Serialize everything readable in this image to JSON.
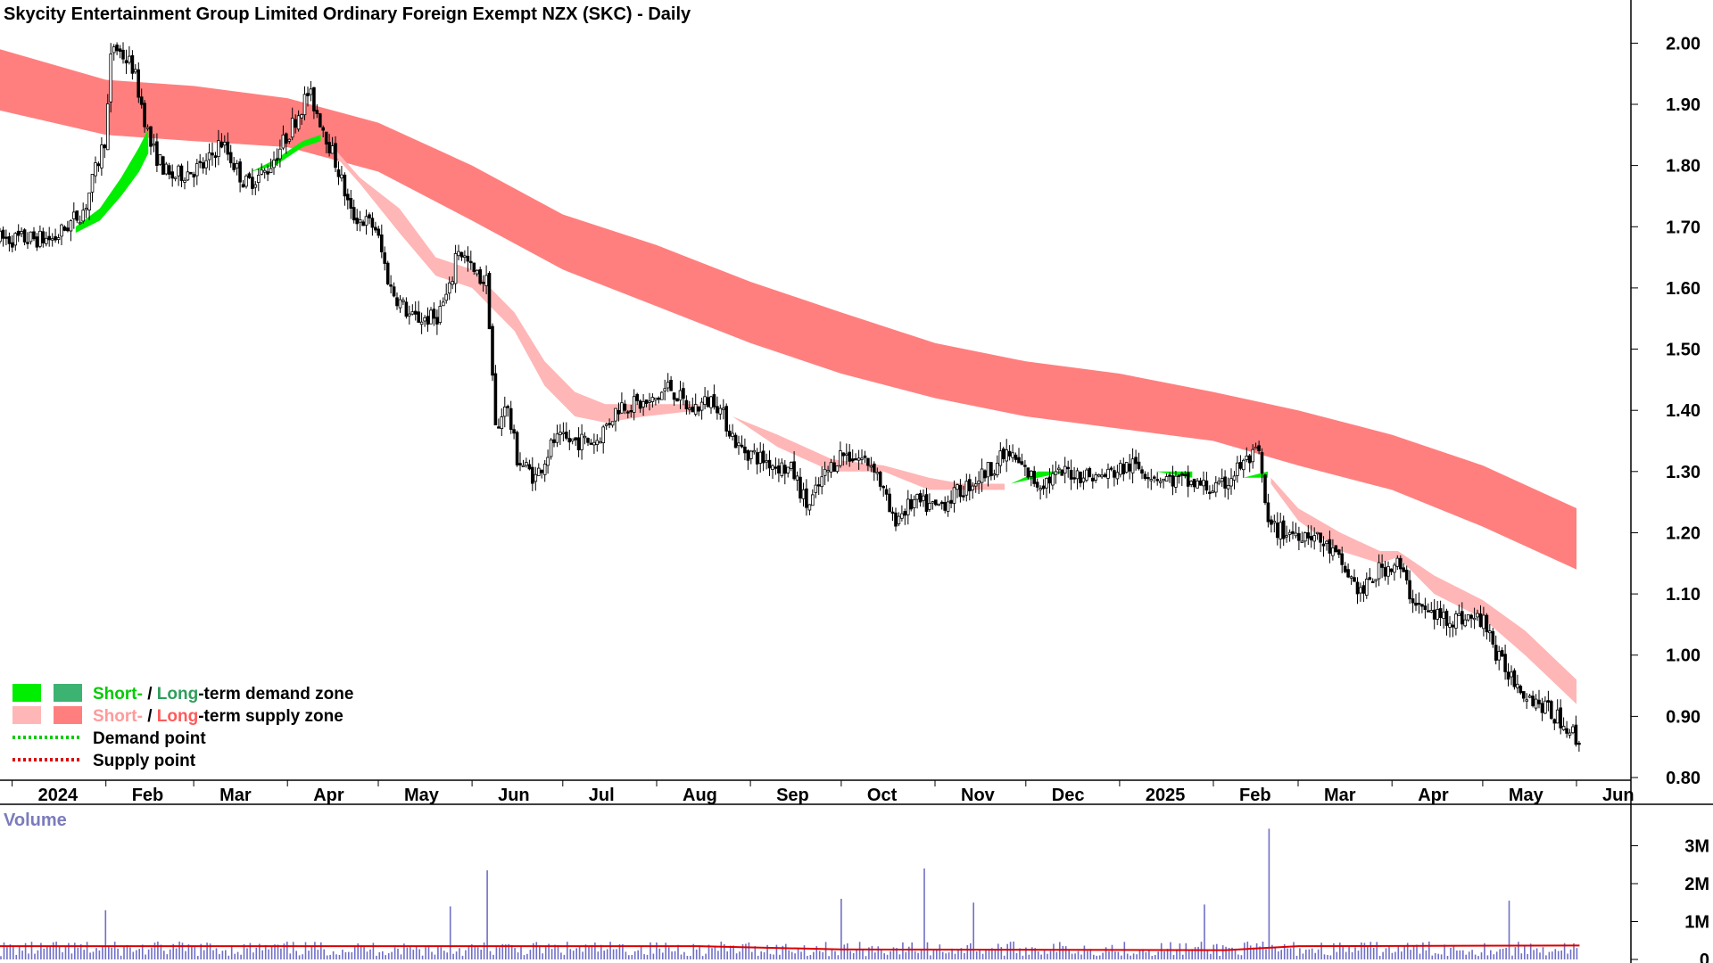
{
  "title": "Skycity Entertainment Group Limited Ordinary Foreign Exempt NZX (SKC) - Daily",
  "colors": {
    "background": "#ffffff",
    "short_demand": "#00ee00",
    "long_demand": "#3cb371",
    "short_supply": "#ffb6b6",
    "long_supply": "#ff7f7f",
    "demand_point": "#00cc00",
    "supply_point": "#dd0000",
    "overlap_orange": "#ff6a1a",
    "candle": "#000000",
    "volume_bar": "#6f6fc8",
    "volume_avg": "#dd0000",
    "volume_title": "#7b7bbd"
  },
  "legend": {
    "row1_short": "Short-",
    "row1_sep": " / ",
    "row1_long": "Long",
    "row1_rest": "-term demand zone",
    "row2_short": "Short-",
    "row2_sep": " / ",
    "row2_long": "Long",
    "row2_rest": "-term supply zone",
    "row3": "Demand point",
    "row4": "Supply point"
  },
  "volume_panel": {
    "title": "Volume",
    "y_ticks": [
      "3M",
      "2M",
      "1M",
      "0"
    ]
  },
  "chart_data": {
    "type": "candlestick",
    "title": "Skycity Entertainment Group Limited Ordinary Foreign Exempt NZX (SKC) - Daily",
    "y_ticks": [
      "2.00",
      "1.90",
      "1.80",
      "1.70",
      "1.60",
      "1.50",
      "1.40",
      "1.30",
      "1.20",
      "1.10",
      "1.00",
      "0.90",
      "0.80"
    ],
    "ylim": [
      0.78,
      2.06
    ],
    "x_ticks": [
      "2024",
      "Feb",
      "Mar",
      "Apr",
      "May",
      "Jun",
      "Jul",
      "Aug",
      "Sep",
      "Oct",
      "Nov",
      "Dec",
      "2025",
      "Feb",
      "Mar",
      "Apr",
      "May",
      "Jun"
    ],
    "x_dates": [
      "2024-01-01",
      "2024-02-01",
      "2024-03-01",
      "2024-04-01",
      "2024-05-01",
      "2024-06-01",
      "2024-07-01",
      "2024-08-01",
      "2024-09-01",
      "2024-10-01",
      "2024-11-01",
      "2024-12-01",
      "2025-01-01",
      "2025-02-01",
      "2025-03-01",
      "2025-04-01",
      "2025-05-01",
      "2025-06-01"
    ],
    "price_series": [
      {
        "date": "2023-12-28",
        "value": 1.68
      },
      {
        "date": "2024-01-15",
        "value": 1.68
      },
      {
        "date": "2024-01-25",
        "value": 1.73
      },
      {
        "date": "2024-02-01",
        "value": 1.85
      },
      {
        "date": "2024-02-03",
        "value": 2.0
      },
      {
        "date": "2024-02-10",
        "value": 1.96
      },
      {
        "date": "2024-02-16",
        "value": 1.83
      },
      {
        "date": "2024-02-22",
        "value": 1.78
      },
      {
        "date": "2024-03-05",
        "value": 1.8
      },
      {
        "date": "2024-03-10",
        "value": 1.84
      },
      {
        "date": "2024-03-18",
        "value": 1.77
      },
      {
        "date": "2024-03-25",
        "value": 1.79
      },
      {
        "date": "2024-04-01",
        "value": 1.85
      },
      {
        "date": "2024-04-08",
        "value": 1.92
      },
      {
        "date": "2024-04-13",
        "value": 1.86
      },
      {
        "date": "2024-04-18",
        "value": 1.79
      },
      {
        "date": "2024-04-22",
        "value": 1.72
      },
      {
        "date": "2024-04-30",
        "value": 1.7
      },
      {
        "date": "2024-05-05",
        "value": 1.6
      },
      {
        "date": "2024-05-12",
        "value": 1.55
      },
      {
        "date": "2024-05-20",
        "value": 1.55
      },
      {
        "date": "2024-05-25",
        "value": 1.6
      },
      {
        "date": "2024-05-27",
        "value": 1.67
      },
      {
        "date": "2024-06-02",
        "value": 1.62
      },
      {
        "date": "2024-06-06",
        "value": 1.61
      },
      {
        "date": "2024-06-09",
        "value": 1.35
      },
      {
        "date": "2024-06-12",
        "value": 1.42
      },
      {
        "date": "2024-06-16",
        "value": 1.32
      },
      {
        "date": "2024-06-22",
        "value": 1.29
      },
      {
        "date": "2024-06-28",
        "value": 1.35
      },
      {
        "date": "2024-07-05",
        "value": 1.35
      },
      {
        "date": "2024-07-12",
        "value": 1.35
      },
      {
        "date": "2024-07-20",
        "value": 1.41
      },
      {
        "date": "2024-07-30",
        "value": 1.41
      },
      {
        "date": "2024-08-05",
        "value": 1.44
      },
      {
        "date": "2024-08-12",
        "value": 1.4
      },
      {
        "date": "2024-08-20",
        "value": 1.42
      },
      {
        "date": "2024-08-28",
        "value": 1.34
      },
      {
        "date": "2024-09-05",
        "value": 1.32
      },
      {
        "date": "2024-09-15",
        "value": 1.3
      },
      {
        "date": "2024-09-20",
        "value": 1.24
      },
      {
        "date": "2024-09-25",
        "value": 1.29
      },
      {
        "date": "2024-10-01",
        "value": 1.33
      },
      {
        "date": "2024-10-08",
        "value": 1.32
      },
      {
        "date": "2024-10-12",
        "value": 1.31
      },
      {
        "date": "2024-10-18",
        "value": 1.22
      },
      {
        "date": "2024-10-25",
        "value": 1.25
      },
      {
        "date": "2024-11-01",
        "value": 1.24
      },
      {
        "date": "2024-11-10",
        "value": 1.27
      },
      {
        "date": "2024-11-18",
        "value": 1.3
      },
      {
        "date": "2024-11-25",
        "value": 1.33
      },
      {
        "date": "2024-12-05",
        "value": 1.28
      },
      {
        "date": "2024-12-15",
        "value": 1.3
      },
      {
        "date": "2024-12-25",
        "value": 1.29
      },
      {
        "date": "2025-01-05",
        "value": 1.31
      },
      {
        "date": "2025-01-15",
        "value": 1.29
      },
      {
        "date": "2025-01-25",
        "value": 1.28
      },
      {
        "date": "2025-02-03",
        "value": 1.27
      },
      {
        "date": "2025-02-10",
        "value": 1.31
      },
      {
        "date": "2025-02-16",
        "value": 1.33
      },
      {
        "date": "2025-02-19",
        "value": 1.21
      },
      {
        "date": "2025-02-25",
        "value": 1.2
      },
      {
        "date": "2025-03-05",
        "value": 1.2
      },
      {
        "date": "2025-03-12",
        "value": 1.17
      },
      {
        "date": "2025-03-22",
        "value": 1.1
      },
      {
        "date": "2025-03-28",
        "value": 1.14
      },
      {
        "date": "2025-04-03",
        "value": 1.15
      },
      {
        "date": "2025-04-07",
        "value": 1.1
      },
      {
        "date": "2025-04-12",
        "value": 1.07
      },
      {
        "date": "2025-04-20",
        "value": 1.06
      },
      {
        "date": "2025-04-28",
        "value": 1.06
      },
      {
        "date": "2025-05-03",
        "value": 1.05
      },
      {
        "date": "2025-05-05",
        "value": 1.0
      },
      {
        "date": "2025-05-10",
        "value": 0.97
      },
      {
        "date": "2025-05-15",
        "value": 0.94
      },
      {
        "date": "2025-05-20",
        "value": 0.92
      },
      {
        "date": "2025-05-25",
        "value": 0.9
      },
      {
        "date": "2025-05-30",
        "value": 0.88
      },
      {
        "date": "2025-06-02",
        "value": 0.85
      }
    ],
    "long_term_supply_zone": [
      {
        "date": "2023-12-28",
        "top": 1.99,
        "bottom": 1.89
      },
      {
        "date": "2024-02-01",
        "top": 1.94,
        "bottom": 1.85
      },
      {
        "date": "2024-03-01",
        "top": 1.93,
        "bottom": 1.84
      },
      {
        "date": "2024-04-01",
        "top": 1.91,
        "bottom": 1.83
      },
      {
        "date": "2024-05-01",
        "top": 1.87,
        "bottom": 1.79
      },
      {
        "date": "2024-06-01",
        "top": 1.8,
        "bottom": 1.71
      },
      {
        "date": "2024-07-01",
        "top": 1.72,
        "bottom": 1.63
      },
      {
        "date": "2024-08-01",
        "top": 1.67,
        "bottom": 1.57
      },
      {
        "date": "2024-09-01",
        "top": 1.61,
        "bottom": 1.51
      },
      {
        "date": "2024-10-01",
        "top": 1.56,
        "bottom": 1.46
      },
      {
        "date": "2024-11-01",
        "top": 1.51,
        "bottom": 1.42
      },
      {
        "date": "2024-12-01",
        "top": 1.48,
        "bottom": 1.39
      },
      {
        "date": "2025-01-01",
        "top": 1.46,
        "bottom": 1.37
      },
      {
        "date": "2025-02-01",
        "top": 1.43,
        "bottom": 1.35
      },
      {
        "date": "2025-03-01",
        "top": 1.4,
        "bottom": 1.31
      },
      {
        "date": "2025-04-01",
        "top": 1.36,
        "bottom": 1.27
      },
      {
        "date": "2025-05-01",
        "top": 1.31,
        "bottom": 1.21
      },
      {
        "date": "2025-06-01",
        "top": 1.24,
        "bottom": 1.14
      }
    ],
    "short_term_zones": [
      {
        "kind": "demand",
        "points": [
          {
            "date": "2024-01-22",
            "top": 1.7,
            "bottom": 1.69
          },
          {
            "date": "2024-01-30",
            "top": 1.73,
            "bottom": 1.71
          },
          {
            "date": "2024-02-06",
            "top": 1.78,
            "bottom": 1.75
          },
          {
            "date": "2024-02-12",
            "top": 1.83,
            "bottom": 1.79
          },
          {
            "date": "2024-02-15",
            "top": 1.86,
            "bottom": 1.82
          }
        ]
      },
      {
        "kind": "demand",
        "points": [
          {
            "date": "2024-03-20",
            "top": 1.79,
            "bottom": 1.79
          },
          {
            "date": "2024-03-28",
            "top": 1.81,
            "bottom": 1.8
          },
          {
            "date": "2024-04-06",
            "top": 1.84,
            "bottom": 1.83
          },
          {
            "date": "2024-04-12",
            "top": 1.85,
            "bottom": 1.84
          }
        ]
      },
      {
        "kind": "supply",
        "points": [
          {
            "date": "2024-04-16",
            "top": 1.83,
            "bottom": 1.82
          },
          {
            "date": "2024-04-25",
            "top": 1.78,
            "bottom": 1.77
          },
          {
            "date": "2024-05-08",
            "top": 1.73,
            "bottom": 1.69
          },
          {
            "date": "2024-05-20",
            "top": 1.65,
            "bottom": 1.62
          },
          {
            "date": "2024-06-01",
            "top": 1.63,
            "bottom": 1.6
          },
          {
            "date": "2024-06-15",
            "top": 1.56,
            "bottom": 1.53
          },
          {
            "date": "2024-06-25",
            "top": 1.48,
            "bottom": 1.44
          },
          {
            "date": "2024-07-05",
            "top": 1.43,
            "bottom": 1.39
          },
          {
            "date": "2024-07-15",
            "top": 1.41,
            "bottom": 1.38
          },
          {
            "date": "2024-07-28",
            "top": 1.41,
            "bottom": 1.39
          },
          {
            "date": "2024-08-15",
            "top": 1.41,
            "bottom": 1.4
          }
        ]
      },
      {
        "kind": "supply",
        "points": [
          {
            "date": "2024-08-26",
            "top": 1.39,
            "bottom": 1.39
          },
          {
            "date": "2024-09-10",
            "top": 1.36,
            "bottom": 1.34
          },
          {
            "date": "2024-09-28",
            "top": 1.32,
            "bottom": 1.3
          },
          {
            "date": "2024-10-15",
            "top": 1.31,
            "bottom": 1.3
          },
          {
            "date": "2024-10-30",
            "top": 1.29,
            "bottom": 1.27
          },
          {
            "date": "2024-11-10",
            "top": 1.28,
            "bottom": 1.27
          },
          {
            "date": "2024-11-24",
            "top": 1.28,
            "bottom": 1.27
          }
        ]
      },
      {
        "kind": "demand",
        "points": [
          {
            "date": "2024-11-26",
            "top": 1.28,
            "bottom": 1.28
          },
          {
            "date": "2024-12-05",
            "top": 1.3,
            "bottom": 1.29
          },
          {
            "date": "2024-12-15",
            "top": 1.3,
            "bottom": 1.3
          }
        ]
      },
      {
        "kind": "supply",
        "points": [
          {
            "date": "2024-12-16",
            "top": 1.3,
            "bottom": 1.3
          },
          {
            "date": "2025-01-05",
            "top": 1.29,
            "bottom": 1.29
          },
          {
            "date": "2025-01-12",
            "top": 1.29,
            "bottom": 1.29
          }
        ]
      },
      {
        "kind": "demand",
        "points": [
          {
            "date": "2025-01-13",
            "top": 1.3,
            "bottom": 1.3
          },
          {
            "date": "2025-01-25",
            "top": 1.3,
            "bottom": 1.29
          }
        ]
      },
      {
        "kind": "supply",
        "points": [
          {
            "date": "2025-01-26",
            "top": 1.29,
            "bottom": 1.29
          },
          {
            "date": "2025-02-10",
            "top": 1.28,
            "bottom": 1.28
          }
        ]
      },
      {
        "kind": "demand",
        "points": [
          {
            "date": "2025-02-11",
            "top": 1.29,
            "bottom": 1.29
          },
          {
            "date": "2025-02-19",
            "top": 1.3,
            "bottom": 1.29
          }
        ]
      },
      {
        "kind": "supply",
        "points": [
          {
            "date": "2025-02-20",
            "top": 1.29,
            "bottom": 1.28
          },
          {
            "date": "2025-03-01",
            "top": 1.24,
            "bottom": 1.22
          },
          {
            "date": "2025-03-15",
            "top": 1.2,
            "bottom": 1.17
          },
          {
            "date": "2025-03-28",
            "top": 1.17,
            "bottom": 1.15
          },
          {
            "date": "2025-04-03",
            "top": 1.17,
            "bottom": 1.16
          },
          {
            "date": "2025-04-15",
            "top": 1.13,
            "bottom": 1.1
          },
          {
            "date": "2025-05-01",
            "top": 1.09,
            "bottom": 1.06
          },
          {
            "date": "2025-05-15",
            "top": 1.04,
            "bottom": 1.0
          },
          {
            "date": "2025-06-01",
            "top": 0.96,
            "bottom": 0.92
          }
        ]
      }
    ],
    "volume": {
      "average_level": 350000,
      "spikes": [
        {
          "date": "2024-02-01",
          "value": 1300000
        },
        {
          "date": "2024-05-25",
          "value": 1400000
        },
        {
          "date": "2024-06-06",
          "value": 2350000
        },
        {
          "date": "2024-10-01",
          "value": 1600000
        },
        {
          "date": "2024-10-28",
          "value": 2400000
        },
        {
          "date": "2024-11-14",
          "value": 1500000
        },
        {
          "date": "2025-01-29",
          "value": 1450000
        },
        {
          "date": "2025-02-19",
          "value": 3450000
        },
        {
          "date": "2025-05-10",
          "value": 1550000
        }
      ]
    }
  }
}
